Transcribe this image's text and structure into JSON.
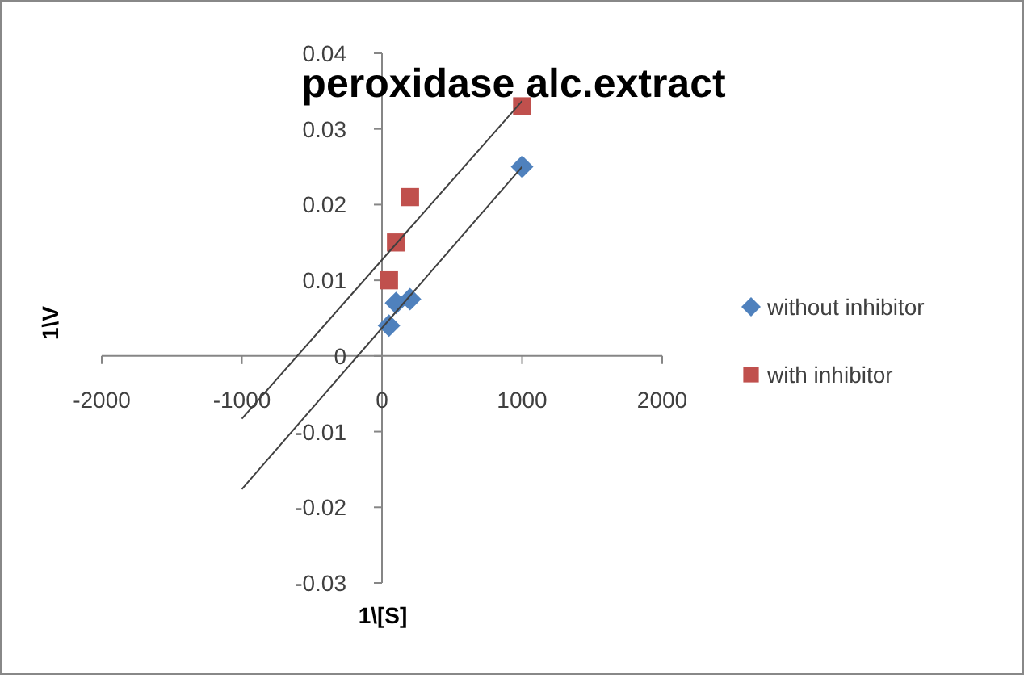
{
  "chart_data": {
    "type": "scatter",
    "title": "peroxidase alc.extract",
    "xlabel": "1\\[S]",
    "ylabel": "1\\V",
    "xlim": [
      -2000,
      2000
    ],
    "xticks": [
      -2000,
      -1000,
      0,
      1000,
      2000
    ],
    "ylim": [
      -0.03,
      0.04
    ],
    "yticks": [
      -0.03,
      -0.02,
      -0.01,
      0,
      0.01,
      0.02,
      0.03,
      0.04
    ],
    "grid": false,
    "legend": "right",
    "series": [
      {
        "name": "without inhibitor",
        "color": "#4f81bd",
        "marker": "diamond",
        "x": [
          50,
          100,
          200,
          1000
        ],
        "values": [
          0.004,
          0.007,
          0.0075,
          0.025
        ]
      },
      {
        "name": "with inhibitor",
        "color": "#c0504d",
        "marker": "square",
        "x": [
          50,
          100,
          200,
          1000
        ],
        "values": [
          0.01,
          0.015,
          0.021,
          0.033
        ]
      },
      {
        "type": "line",
        "color": "#404040",
        "marker": "none",
        "x": [
          -1000,
          1000
        ],
        "values": [
          -0.0176,
          0.025
        ]
      },
      {
        "type": "line",
        "color": "#404040",
        "marker": "none",
        "x": [
          -1000,
          1000
        ],
        "values": [
          -0.0083,
          0.0337
        ]
      }
    ]
  }
}
